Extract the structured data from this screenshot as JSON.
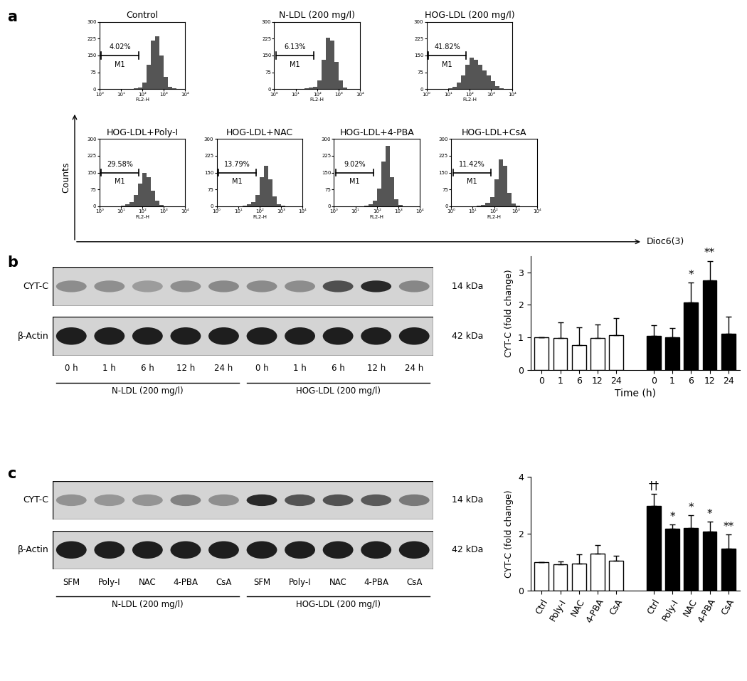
{
  "figure": {
    "panel_labels": [
      "a",
      "b",
      "c"
    ],
    "y_arrow_label": "Counts",
    "x_arrow_label": "Dioc6(3)"
  },
  "chart_data": [
    {
      "type": "histogram",
      "title": "Control",
      "xlabel": "FL2-H",
      "log": "x",
      "xlim": [
        1,
        10000
      ],
      "xticks": [
        {
          "value": 1,
          "label": "10⁰"
        },
        {
          "value": 10,
          "label": "10¹"
        },
        {
          "value": 100,
          "label": "10²"
        },
        {
          "value": 1000,
          "label": "10³"
        },
        {
          "value": 10000,
          "label": "10⁴"
        }
      ],
      "ylim": [
        0,
        300
      ],
      "yticks": [
        0,
        75,
        150,
        225,
        300
      ],
      "color": "#555555",
      "bins": [
        1,
        1.585,
        2.512,
        3.981,
        6.31,
        10,
        15.85,
        25.12,
        39.81,
        63.1,
        100,
        158.5,
        251.2,
        398.1,
        631,
        1000,
        1585,
        2512,
        3981,
        6310,
        10000
      ],
      "counts": [
        0,
        0,
        0,
        0,
        0,
        0,
        1,
        2,
        4,
        8,
        30,
        110,
        215,
        235,
        150,
        55,
        12,
        3,
        0,
        0
      ],
      "gate": {
        "label": "M1",
        "range": [
          1.2,
          70
        ],
        "annotation": "4.02%"
      }
    },
    {
      "type": "histogram",
      "title": "N-LDL (200 mg/l)",
      "xlabel": "FL2-H",
      "log": "x",
      "xlim": [
        1,
        10000
      ],
      "xticks": [
        {
          "value": 1,
          "label": "10⁰"
        },
        {
          "value": 10,
          "label": "10¹"
        },
        {
          "value": 100,
          "label": "10²"
        },
        {
          "value": 1000,
          "label": "10³"
        },
        {
          "value": 10000,
          "label": "10⁴"
        }
      ],
      "ylim": [
        0,
        300
      ],
      "yticks": [
        0,
        75,
        150,
        225,
        300
      ],
      "color": "#555555",
      "bins": [
        1,
        1.585,
        2.512,
        3.981,
        6.31,
        10,
        15.85,
        25.12,
        39.81,
        63.1,
        100,
        158.5,
        251.2,
        398.1,
        631,
        1000,
        1585,
        2512,
        3981,
        6310,
        10000
      ],
      "counts": [
        0,
        0,
        0,
        0,
        0,
        0,
        1,
        3,
        6,
        12,
        40,
        130,
        230,
        215,
        120,
        40,
        8,
        2,
        0,
        0
      ],
      "gate": {
        "label": "M1",
        "range": [
          1.2,
          70
        ],
        "annotation": "6.13%"
      }
    },
    {
      "type": "histogram",
      "title": "HOG-LDL (200 mg/l)",
      "xlabel": "FL2-H",
      "log": "x",
      "xlim": [
        1,
        10000
      ],
      "xticks": [
        {
          "value": 1,
          "label": "10⁰"
        },
        {
          "value": 10,
          "label": "10¹"
        },
        {
          "value": 100,
          "label": "10²"
        },
        {
          "value": 1000,
          "label": "10³"
        },
        {
          "value": 10000,
          "label": "10⁴"
        }
      ],
      "ylim": [
        0,
        300
      ],
      "yticks": [
        0,
        75,
        150,
        225,
        300
      ],
      "color": "#555555",
      "bins": [
        1,
        1.585,
        2.512,
        3.981,
        6.31,
        10,
        15.85,
        25.12,
        39.81,
        63.1,
        100,
        158.5,
        251.2,
        398.1,
        631,
        1000,
        1585,
        2512,
        3981,
        6310,
        10000
      ],
      "counts": [
        0,
        0,
        0,
        0,
        2,
        5,
        12,
        30,
        60,
        110,
        140,
        130,
        110,
        85,
        60,
        35,
        15,
        4,
        1,
        0
      ],
      "gate": {
        "label": "M1",
        "range": [
          1.2,
          70
        ],
        "annotation": "41.82%"
      }
    },
    {
      "type": "histogram",
      "title": "HOG-LDL+Poly-I",
      "xlabel": "FL2-H",
      "log": "x",
      "xlim": [
        1,
        10000
      ],
      "xticks": [
        {
          "value": 1,
          "label": "10⁰"
        },
        {
          "value": 10,
          "label": "10¹"
        },
        {
          "value": 100,
          "label": "10²"
        },
        {
          "value": 1000,
          "label": "10³"
        },
        {
          "value": 10000,
          "label": "10⁴"
        }
      ],
      "ylim": [
        0,
        300
      ],
      "yticks": [
        0,
        75,
        150,
        225,
        300
      ],
      "color": "#555555",
      "bins": [
        1,
        1.585,
        2.512,
        3.981,
        6.31,
        10,
        15.85,
        25.12,
        39.81,
        63.1,
        100,
        158.5,
        251.2,
        398.1,
        631,
        1000,
        1585,
        2512,
        3981,
        6310,
        10000
      ],
      "counts": [
        0,
        0,
        0,
        0,
        1,
        3,
        8,
        20,
        50,
        100,
        150,
        130,
        70,
        25,
        6,
        1,
        0,
        0,
        0,
        0
      ],
      "gate": {
        "label": "M1",
        "range": [
          1.2,
          70
        ],
        "annotation": "29.58%"
      }
    },
    {
      "type": "histogram",
      "title": "HOG-LDL+NAC",
      "xlabel": "FL2-H",
      "log": "x",
      "xlim": [
        1,
        10000
      ],
      "xticks": [
        {
          "value": 1,
          "label": "10⁰"
        },
        {
          "value": 10,
          "label": "10¹"
        },
        {
          "value": 100,
          "label": "10²"
        },
        {
          "value": 1000,
          "label": "10³"
        },
        {
          "value": 10000,
          "label": "10⁴"
        }
      ],
      "ylim": [
        0,
        300
      ],
      "yticks": [
        0,
        75,
        150,
        225,
        300
      ],
      "color": "#555555",
      "bins": [
        1,
        1.585,
        2.512,
        3.981,
        6.31,
        10,
        15.85,
        25.12,
        39.81,
        63.1,
        100,
        158.5,
        251.2,
        398.1,
        631,
        1000,
        1585,
        2512,
        3981,
        6310,
        10000
      ],
      "counts": [
        0,
        0,
        0,
        0,
        0,
        1,
        3,
        8,
        20,
        50,
        130,
        180,
        120,
        45,
        10,
        2,
        0,
        0,
        0,
        0
      ],
      "gate": {
        "label": "M1",
        "range": [
          1.2,
          70
        ],
        "annotation": "13.79%"
      }
    },
    {
      "type": "histogram",
      "title": "HOG-LDL+4-PBA",
      "xlabel": "FL2-H",
      "log": "x",
      "xlim": [
        1,
        10000
      ],
      "xticks": [
        {
          "value": 1,
          "label": "10⁰"
        },
        {
          "value": 10,
          "label": "10¹"
        },
        {
          "value": 100,
          "label": "10²"
        },
        {
          "value": 1000,
          "label": "10³"
        },
        {
          "value": 10000,
          "label": "10⁴"
        }
      ],
      "ylim": [
        0,
        300
      ],
      "yticks": [
        0,
        75,
        150,
        225,
        300
      ],
      "color": "#555555",
      "bins": [
        1,
        1.585,
        2.512,
        3.981,
        6.31,
        10,
        15.85,
        25.12,
        39.81,
        63.1,
        100,
        158.5,
        251.2,
        398.1,
        631,
        1000,
        1585,
        2512,
        3981,
        6310,
        10000
      ],
      "counts": [
        0,
        0,
        0,
        0,
        0,
        0,
        1,
        4,
        10,
        25,
        80,
        200,
        270,
        130,
        30,
        5,
        1,
        0,
        0,
        0
      ],
      "gate": {
        "label": "M1",
        "range": [
          1.2,
          70
        ],
        "annotation": "9.02%"
      }
    },
    {
      "type": "histogram",
      "title": "HOG-LDL+CsA",
      "xlabel": "FL2-H",
      "log": "x",
      "xlim": [
        1,
        10000
      ],
      "xticks": [
        {
          "value": 1,
          "label": "10⁰"
        },
        {
          "value": 10,
          "label": "10¹"
        },
        {
          "value": 100,
          "label": "10²"
        },
        {
          "value": 1000,
          "label": "10³"
        },
        {
          "value": 10000,
          "label": "10⁴"
        }
      ],
      "ylim": [
        0,
        300
      ],
      "yticks": [
        0,
        75,
        150,
        225,
        300
      ],
      "color": "#555555",
      "bins": [
        1,
        1.585,
        2.512,
        3.981,
        6.31,
        10,
        15.85,
        25.12,
        39.81,
        63.1,
        100,
        158.5,
        251.2,
        398.1,
        631,
        1000,
        1585,
        2512,
        3981,
        6310,
        10000
      ],
      "counts": [
        0,
        0,
        0,
        0,
        0,
        1,
        2,
        6,
        15,
        40,
        120,
        210,
        180,
        60,
        12,
        2,
        0,
        0,
        0,
        0
      ],
      "gate": {
        "label": "M1",
        "range": [
          1.2,
          70
        ],
        "annotation": "11.42%"
      }
    },
    {
      "type": "bar",
      "xlabel": "Time (h)",
      "ylabel": "CYT-C (fold change)",
      "categories": [
        "0",
        "1",
        "6",
        "12",
        "24",
        null,
        "0",
        "1",
        "6",
        "12",
        "24"
      ],
      "ylim": [
        0,
        3.5
      ],
      "yticks": [
        0,
        1,
        2,
        3
      ],
      "series": [
        {
          "color": "#ffffff",
          "values": [
            1,
            0.97,
            0.75,
            0.98,
            1.07,
            null,
            null,
            null,
            null,
            null,
            null
          ],
          "errors": [
            0,
            0.5,
            0.55,
            0.42,
            0.52,
            null,
            null,
            null,
            null,
            null,
            null
          ]
        },
        {
          "color": "#000000",
          "values": [
            null,
            null,
            null,
            null,
            null,
            null,
            1.05,
            1.0,
            2.08,
            2.75,
            1.12
          ],
          "errors": [
            null,
            null,
            null,
            null,
            null,
            null,
            0.33,
            0.28,
            0.6,
            0.6,
            0.52
          ],
          "significance": [
            null,
            null,
            null,
            null,
            null,
            null,
            null,
            null,
            "*",
            "**",
            null
          ]
        }
      ]
    },
    {
      "type": "bar",
      "ylabel": "CYT-C (fold change)",
      "categories": [
        "Ctrl",
        "Poly-I",
        "NAC",
        "4-PBA",
        "CsA",
        null,
        "Ctrl",
        "Poly-I",
        "NAC",
        "4-PBA",
        "CsA"
      ],
      "ylim": [
        0,
        4
      ],
      "yticks": [
        0,
        2,
        4
      ],
      "series": [
        {
          "color": "#ffffff",
          "values": [
            1,
            0.93,
            0.95,
            1.3,
            1.05,
            null,
            null,
            null,
            null,
            null,
            null
          ],
          "errors": [
            0,
            0.1,
            0.32,
            0.3,
            0.18,
            null,
            null,
            null,
            null,
            null,
            null
          ]
        },
        {
          "color": "#000000",
          "values": [
            null,
            null,
            null,
            null,
            null,
            null,
            2.98,
            2.18,
            2.2,
            2.07,
            1.47
          ],
          "errors": [
            null,
            null,
            null,
            null,
            null,
            null,
            0.42,
            0.14,
            0.45,
            0.35,
            0.5
          ],
          "significance": [
            null,
            null,
            null,
            null,
            null,
            null,
            "††",
            "*",
            "*",
            "*",
            "**"
          ]
        }
      ]
    }
  ],
  "blots": [
    {
      "rows": [
        {
          "name": "CYT-C",
          "size": "14 kDa"
        },
        {
          "name": "β-Actin",
          "size": "42 kDa"
        }
      ],
      "groups": [
        {
          "label": "N-LDL (200 mg/l)",
          "lanes": [
            "0 h",
            "1 h",
            "6 h",
            "12 h",
            "24 h"
          ]
        },
        {
          "label": "HOG-LDL (200 mg/l)",
          "lanes": [
            "0 h",
            "1 h",
            "6 h",
            "12 h",
            "24 h"
          ]
        }
      ]
    },
    {
      "rows": [
        {
          "name": "CYT-C",
          "size": "14 kDa"
        },
        {
          "name": "β-Actin",
          "size": "42 kDa"
        }
      ],
      "groups": [
        {
          "label": "N-LDL (200 mg/l)",
          "lanes": [
            "SFM",
            "Poly-I",
            "NAC",
            "4-PBA",
            "CsA"
          ]
        },
        {
          "label": "HOG-LDL (200 mg/l)",
          "lanes": [
            "SFM",
            "Poly-I",
            "NAC",
            "4-PBA",
            "CsA"
          ]
        }
      ]
    }
  ]
}
